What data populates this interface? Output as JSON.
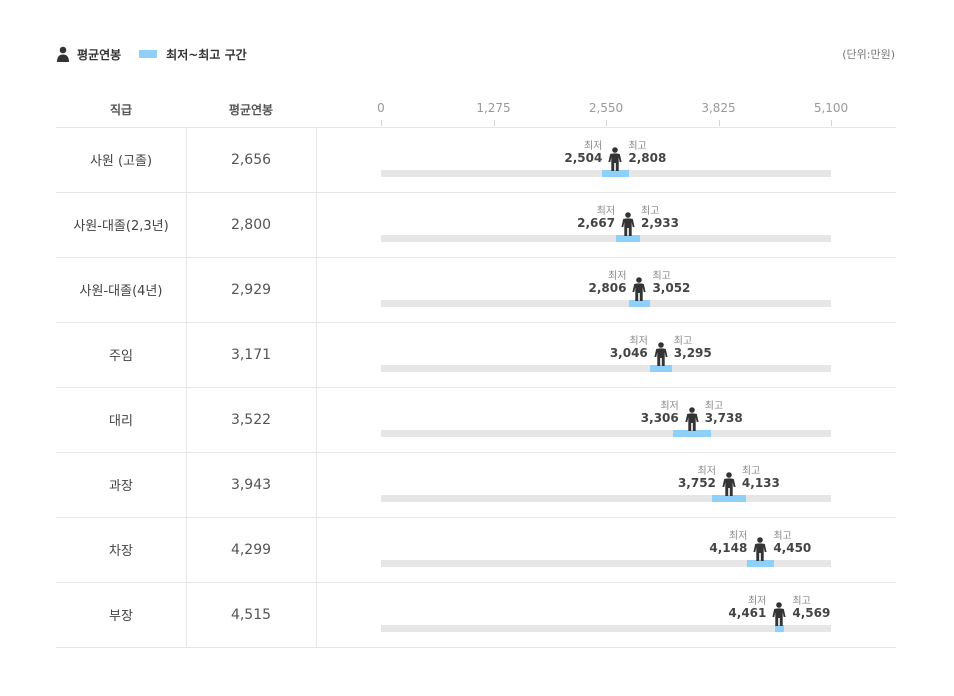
{
  "legend": {
    "avg_label": "평균연봉",
    "range_label": "최저~최고 구간",
    "unit": "(단위:만원)"
  },
  "columns": {
    "rank": "직급",
    "avg": "평균연봉"
  },
  "colors": {
    "range": "#8fd0fb",
    "track": "#e6e6e6",
    "icon": "#333333"
  },
  "chart_data": {
    "type": "bar",
    "xlim": [
      0,
      5100
    ],
    "ticks": [
      "0",
      "1,275",
      "2,550",
      "3,825",
      "5,100"
    ],
    "min_word": "최저",
    "max_word": "최고",
    "rows": [
      {
        "label": "사원 (고졸)",
        "avg": 2656,
        "avg_text": "2,656",
        "min": 2504,
        "min_text": "2,504",
        "max": 2808,
        "max_text": "2,808"
      },
      {
        "label": "사원-대졸(2,3년)",
        "avg": 2800,
        "avg_text": "2,800",
        "min": 2667,
        "min_text": "2,667",
        "max": 2933,
        "max_text": "2,933"
      },
      {
        "label": "사원-대졸(4년)",
        "avg": 2929,
        "avg_text": "2,929",
        "min": 2806,
        "min_text": "2,806",
        "max": 3052,
        "max_text": "3,052"
      },
      {
        "label": "주임",
        "avg": 3171,
        "avg_text": "3,171",
        "min": 3046,
        "min_text": "3,046",
        "max": 3295,
        "max_text": "3,295"
      },
      {
        "label": "대리",
        "avg": 3522,
        "avg_text": "3,522",
        "min": 3306,
        "min_text": "3,306",
        "max": 3738,
        "max_text": "3,738"
      },
      {
        "label": "과장",
        "avg": 3943,
        "avg_text": "3,943",
        "min": 3752,
        "min_text": "3,752",
        "max": 4133,
        "max_text": "4,133"
      },
      {
        "label": "차장",
        "avg": 4299,
        "avg_text": "4,299",
        "min": 4148,
        "min_text": "4,148",
        "max": 4450,
        "max_text": "4,450"
      },
      {
        "label": "부장",
        "avg": 4515,
        "avg_text": "4,515",
        "min": 4461,
        "min_text": "4,461",
        "max": 4569,
        "max_text": "4,569"
      }
    ]
  }
}
